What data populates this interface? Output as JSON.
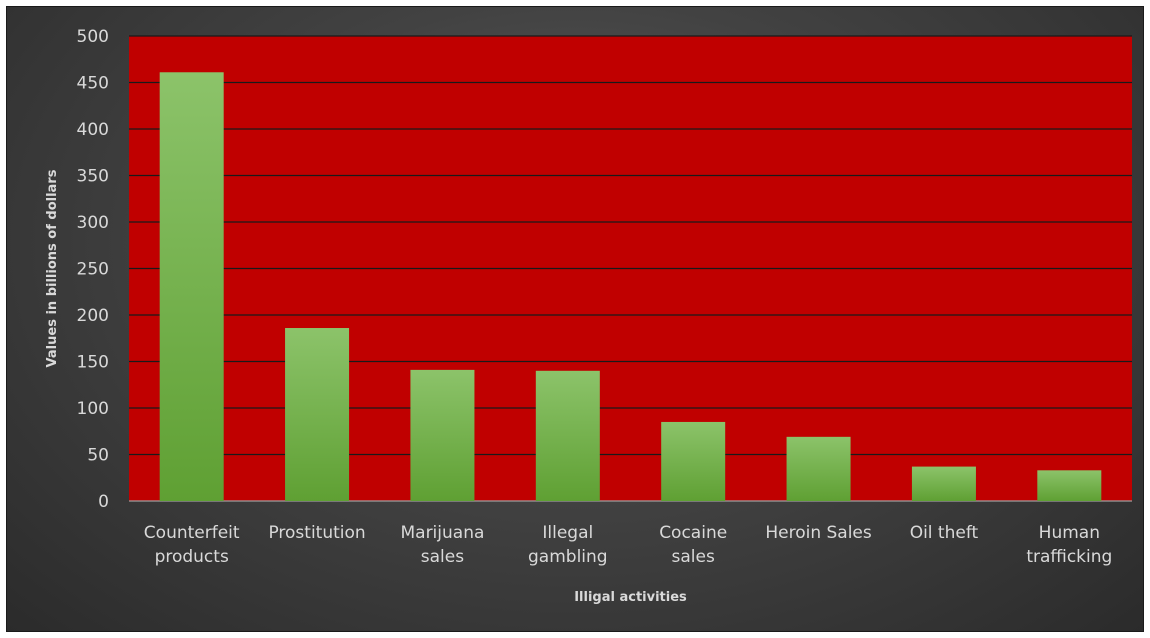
{
  "chart_data": {
    "type": "bar",
    "title": "",
    "xlabel": "Illigal activities",
    "ylabel": "Values in billions of dollars",
    "ylim": [
      0,
      500
    ],
    "yticks": [
      0,
      50,
      100,
      150,
      200,
      250,
      300,
      350,
      400,
      450,
      500
    ],
    "grid": true,
    "legend": "none",
    "categories": [
      [
        "Counterfeit",
        "products"
      ],
      [
        "Prostitution"
      ],
      [
        "Marijuana",
        "sales"
      ],
      [
        "Illegal",
        "gambling"
      ],
      [
        "Cocaine",
        "sales"
      ],
      [
        "Heroin Sales"
      ],
      [
        "Oil theft"
      ],
      [
        "Human",
        "trafficking"
      ]
    ],
    "values": [
      461,
      186,
      141,
      140,
      85,
      69,
      37,
      33
    ],
    "colors": {
      "plot_background": "#c00000",
      "bar_top": "#8cc36a",
      "bar_bottom": "#5fa033",
      "gridline": "#1a1a1a",
      "text": "#d9d9d9"
    }
  }
}
